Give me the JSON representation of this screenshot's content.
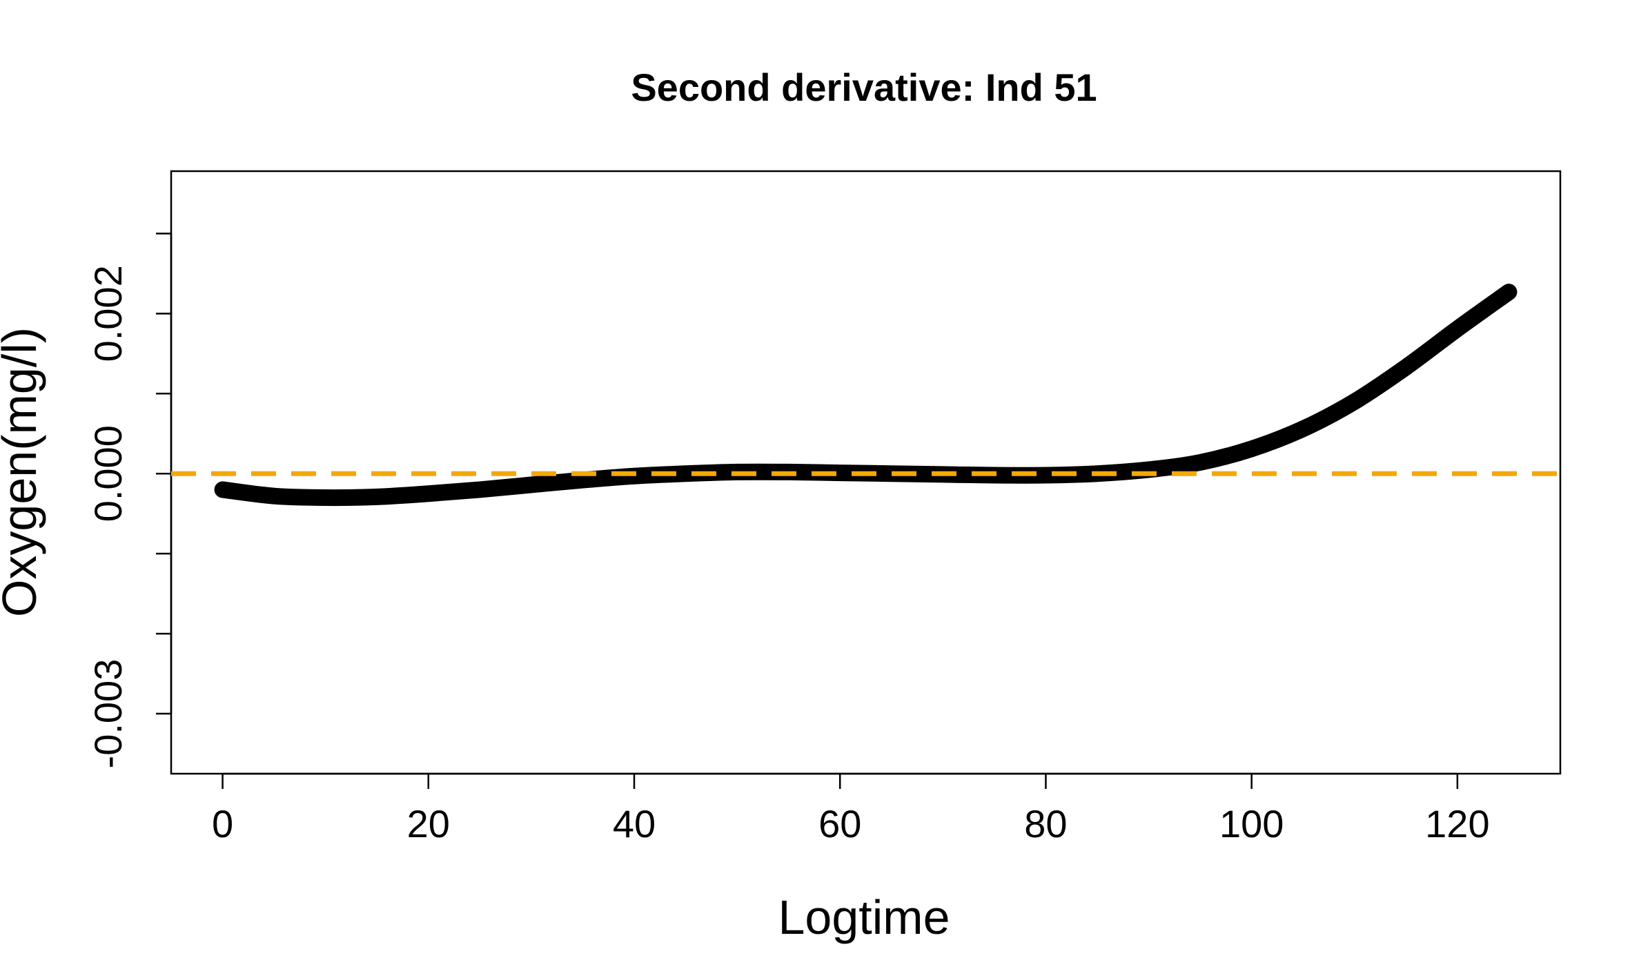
{
  "chart_data": {
    "type": "line",
    "title": "Second derivative: Ind 51",
    "xlabel": "Logtime",
    "ylabel": "Oxygen(mg/l)",
    "xlim": [
      -5,
      130
    ],
    "ylim": [
      -0.00375,
      0.00378
    ],
    "x_ticks": [
      0,
      20,
      40,
      60,
      80,
      100,
      120
    ],
    "x_tick_labels": [
      "0",
      "20",
      "40",
      "60",
      "80",
      "100",
      "120"
    ],
    "y_ticks": [
      -0.003,
      -0.002,
      -0.001,
      0.0,
      0.001,
      0.002,
      0.003
    ],
    "y_tick_labels": [
      {
        "value": -0.003,
        "label": "-0.003"
      },
      {
        "value": 0.0,
        "label": "0.000"
      },
      {
        "value": 0.002,
        "label": "0.002"
      }
    ],
    "grid": false,
    "series": [
      {
        "color": "#000000",
        "x": [
          0,
          5,
          10,
          15,
          20,
          25,
          30,
          35,
          40,
          45,
          50,
          55,
          60,
          65,
          70,
          75,
          80,
          85,
          90,
          95,
          100,
          105,
          110,
          115,
          120,
          125
        ],
        "y": [
          -0.0002,
          -0.00028,
          -0.0003,
          -0.00029,
          -0.00025,
          -0.0002,
          -0.00014,
          -8e-05,
          -3e-05,
          0.0,
          2e-05,
          2e-05,
          1e-05,
          0.0,
          -1e-05,
          -2e-05,
          -2e-05,
          0.0,
          5e-05,
          0.00014,
          0.00031,
          0.00056,
          0.0009,
          0.00133,
          0.00181,
          0.00227
        ]
      }
    ],
    "reference_line": {
      "y": 0.0,
      "color": "#f5a800",
      "style": "dashed"
    }
  }
}
